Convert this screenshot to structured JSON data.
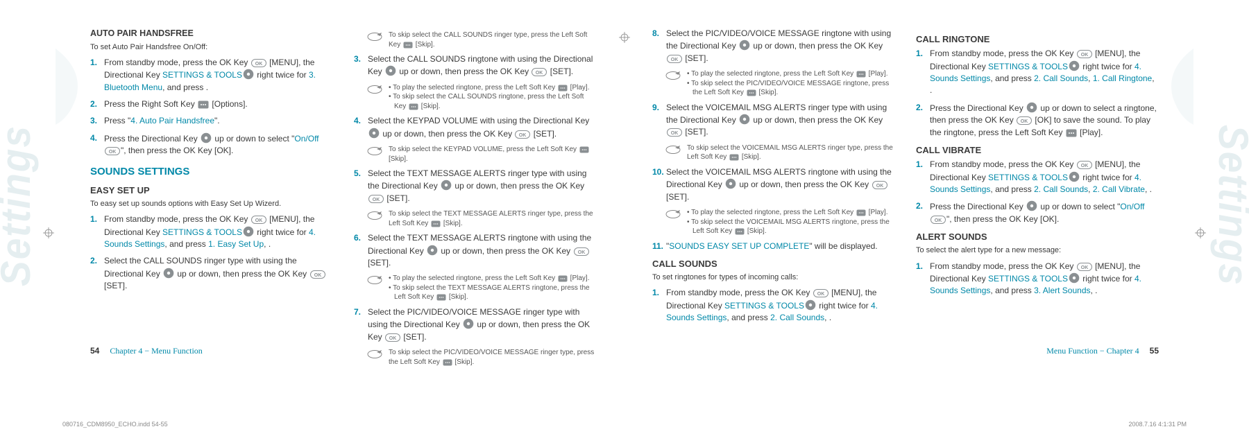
{
  "colors": {
    "accent": "#0088a8",
    "text": "#3a3a3a",
    "note": "#555555",
    "watermark": "#e5eef0",
    "key_fill": "#8a8f92"
  },
  "watermark": "Settings",
  "reg_mark": true,
  "slug": {
    "file": "080716_CDM8950_ECHO.indd   54-55",
    "date": "2008.7.16   4:1:31 PM"
  },
  "page_left": {
    "footer": {
      "num": "54",
      "label": "Chapter 4 − Menu Function"
    },
    "col1": {
      "h1": "AUTO PAIR HANDSFREE",
      "intro1": "To set Auto Pair Handsfree On/Off:",
      "steps1": [
        {
          "n": "1.",
          "pre": "From standby mode, press the OK Key ",
          "k1": "ok",
          "mid1": " [MENU], the Directional Key ",
          "k2": "dir",
          "mid2": " right twice for ",
          "link1": "SETTINGS & TOOLS",
          "mid3": ", and press ",
          "link2": "3. Bluetooth Menu",
          "post": "."
        },
        {
          "n": "2.",
          "pre": "Press the Right Soft Key ",
          "k1": "soft",
          "post": " [Options]."
        },
        {
          "n": "3.",
          "pre": "Press \"",
          "link1": "4. Auto Pair Handsfree",
          "post": "\"."
        },
        {
          "n": "4.",
          "pre": "Press the Directional Key ",
          "k1": "dir",
          "mid1": " up or down to select \"",
          "link1": "On/Off",
          "mid2": "\", then press the OK Key ",
          "k2": "ok",
          "post": " [OK]."
        }
      ],
      "h2": "SOUNDS SETTINGS",
      "h3": "EASY SET UP",
      "intro2": "To easy set up sounds options with Easy Set Up Wizerd.",
      "steps2": [
        {
          "n": "1.",
          "pre": "From standby mode, press the OK Key ",
          "k1": "ok",
          "mid1": " [MENU], the Directional Key ",
          "k2": "dir",
          "mid2": " right twice for ",
          "link1": "SETTINGS & TOOLS",
          "mid3": ", and press ",
          "link2": "4. Sounds Settings",
          "mid4": ", ",
          "link3": "1. Easy Set Up",
          "post": "."
        },
        {
          "n": "2.",
          "pre": "Select the CALL SOUNDS ringer type with using the Directional Key ",
          "k1": "dir",
          "mid1": " up or down, then press the OK Key ",
          "k2": "ok",
          "post": " [SET]."
        }
      ]
    },
    "col2": {
      "note1": "To skip select the CALL SOUNDS ringer type, press the Left Soft Key ⬚ [Skip].",
      "steps": [
        {
          "n": "3.",
          "pre": "Select the CALL SOUNDS ringtone with using the Directional Key ",
          "k1": "dir",
          "mid1": " up or down, then press the OK Key ",
          "k2": "ok",
          "post": " [SET]."
        }
      ],
      "note2a": "• To play the selected ringtone, press the Left Soft Key ⬚ [Play].",
      "note2b": "• To skip select the CALL SOUNDS ringtone, press the Left Soft Key ⬚ [Skip].",
      "step4": {
        "n": "4.",
        "pre": "Select the KEYPAD VOLUME with using the Directional Key ",
        "k1": "dir",
        "mid1": " up or down, then press the OK Key ",
        "k2": "ok",
        "post": " [SET]."
      },
      "note3": "To skip select the KEYPAD VOLUME, press the Left Soft Key ⬚ [Skip].",
      "step5": {
        "n": "5.",
        "pre": "Select the TEXT MESSAGE ALERTS ringer type with using the Directional Key ",
        "k1": "dir",
        "mid1": " up or down, then press the OK Key ",
        "k2": "ok",
        "post": " [SET]."
      },
      "note4": "To skip select the TEXT MESSAGE ALERTS ringer type, press the Left Soft Key ⬚ [Skip].",
      "step6": {
        "n": "6.",
        "pre": "Select the TEXT MESSAGE ALERTS ringtone with using the Directional Key ",
        "k1": "dir",
        "mid1": " up or down, then press the OK Key ",
        "k2": "ok",
        "post": " [SET]."
      },
      "note5a": "• To play the selected ringtone, press the Left Soft Key ⬚ [Play].",
      "note5b": "• To skip select the TEXT MESSAGE ALERTS ringtone, press the Left Soft Key ⬚ [Skip].",
      "step7": {
        "n": "7.",
        "pre": "Select the PIC/VIDEO/VOICE MESSAGE ringer type with using the Directional Key ",
        "k1": "dir",
        "mid1": " up or down, then press the OK Key ",
        "k2": "ok",
        "post": " [SET]."
      },
      "note6": "To skip select the PIC/VIDEO/VOICE MESSAGE ringer type, press the Left Soft Key ⬚ [Skip]."
    }
  },
  "page_right": {
    "footer": {
      "num": "55",
      "label": "Menu Function − Chapter 4"
    },
    "col1": {
      "step8": {
        "n": "8.",
        "pre": "Select the PIC/VIDEO/VOICE MESSAGE ringtone with using the Directional Key ",
        "k1": "dir",
        "mid1": " up or down, then press the OK Key ",
        "k2": "ok",
        "post": " [SET]."
      },
      "note1a": "• To play the selected ringtone, press the Left Soft Key ⬚ [Play].",
      "note1b": "• To skip select the PIC/VIDEO/VOICE MESSAGE ringtone, press the Left Soft Key ⬚ [Skip].",
      "step9": {
        "n": "9.",
        "pre": "Select the VOICEMAIL MSG ALERTS ringer type with using the Directional Key ",
        "k1": "dir",
        "mid1": " up or down, then press the OK Key ",
        "k2": "ok",
        "post": " [SET]."
      },
      "note2": "To skip select the VOICEMAIL MSG ALERTS ringer type, press the Left Soft Key ⬚ [Skip].",
      "step10": {
        "n": "10.",
        "pre": "Select the VOICEMAIL MSG ALERTS ringtone with using the Directional Key ",
        "k1": "dir",
        "mid1": " up or down, then press the OK Key ",
        "k2": "ok",
        "post": " [SET]."
      },
      "note3a": "• To play the selected ringtone, press the Left Soft Key ⬚ [Play].",
      "note3b": "• To skip select the VOICEMAIL MSG ALERTS ringtone, press the Left Soft Key ⬚ [Skip].",
      "step11": {
        "n": "11.",
        "pre": "\"",
        "link1": "SOUNDS EASY SET UP COMPLETE",
        "post": "\" will be displayed."
      },
      "h1": "CALL SOUNDS",
      "intro1": "To set ringtones for types of incoming calls:",
      "steps_cs": [
        {
          "n": "1.",
          "pre": "From standby mode, press the OK Key ",
          "k1": "ok",
          "mid1": " [MENU], the Directional Key ",
          "k2": "dir",
          "mid2": " right twice for ",
          "link1": "SETTINGS & TOOLS",
          "mid3": ", and press ",
          "link2": "4. Sounds Settings",
          "mid4": ", ",
          "link3": "2. Call Sounds",
          "post": "."
        }
      ]
    },
    "col2": {
      "h1": "CALL RINGTONE",
      "steps1": [
        {
          "n": "1.",
          "pre": "From standby mode, press the OK Key ",
          "k1": "ok",
          "mid1": " [MENU], the Directional Key ",
          "k2": "dir",
          "mid2": " right twice for ",
          "link1": "SETTINGS & TOOLS",
          "mid3": ", and press ",
          "link2": "4. Sounds Settings",
          "mid4": ", ",
          "link3": "2. Call Sounds",
          "mid5": ", ",
          "link4": "1. Call Ringtone",
          "post": "."
        },
        {
          "n": "2.",
          "pre": "Press the Directional Key ",
          "k1": "dir",
          "mid1": " up or down to select a ringtone, then press the OK Key ",
          "k2": "ok",
          "mid2": " [OK] to save the sound. To play the ringtone, press the Left Soft Key ",
          "k3": "soft",
          "post": " [Play]."
        }
      ],
      "h2": "CALL VIBRATE",
      "steps2": [
        {
          "n": "1.",
          "pre": "From standby mode, press the OK Key ",
          "k1": "ok",
          "mid1": " [MENU], the Directional Key ",
          "k2": "dir",
          "mid2": " right twice for ",
          "link1": "SETTINGS & TOOLS",
          "mid3": ", and press ",
          "link2": "4. Sounds Settings",
          "mid4": ", ",
          "link3": "2. Call Sounds",
          "mid5": ", ",
          "link4": "2. Call Vibrate",
          "post": "."
        },
        {
          "n": "2.",
          "pre": "Press the Directional Key ",
          "k1": "dir",
          "mid1": " up or down to select \"",
          "link1": "On/Off",
          "mid2": "\", then press the OK Key ",
          "k2": "ok",
          "post": " [OK]."
        }
      ],
      "h3": "ALERT SOUNDS",
      "intro3": "To select the alert type for a new message:",
      "steps3": [
        {
          "n": "1.",
          "pre": "From standby mode, press the OK Key ",
          "k1": "ok",
          "mid1": " [MENU], the Directional Key ",
          "k2": "dir",
          "mid2": " right twice for ",
          "link1": "SETTINGS & TOOLS",
          "mid3": ", and press ",
          "link2": "4. Sounds Settings",
          "mid4": ", ",
          "link3": "3. Alert Sounds",
          "post": "."
        }
      ]
    }
  }
}
